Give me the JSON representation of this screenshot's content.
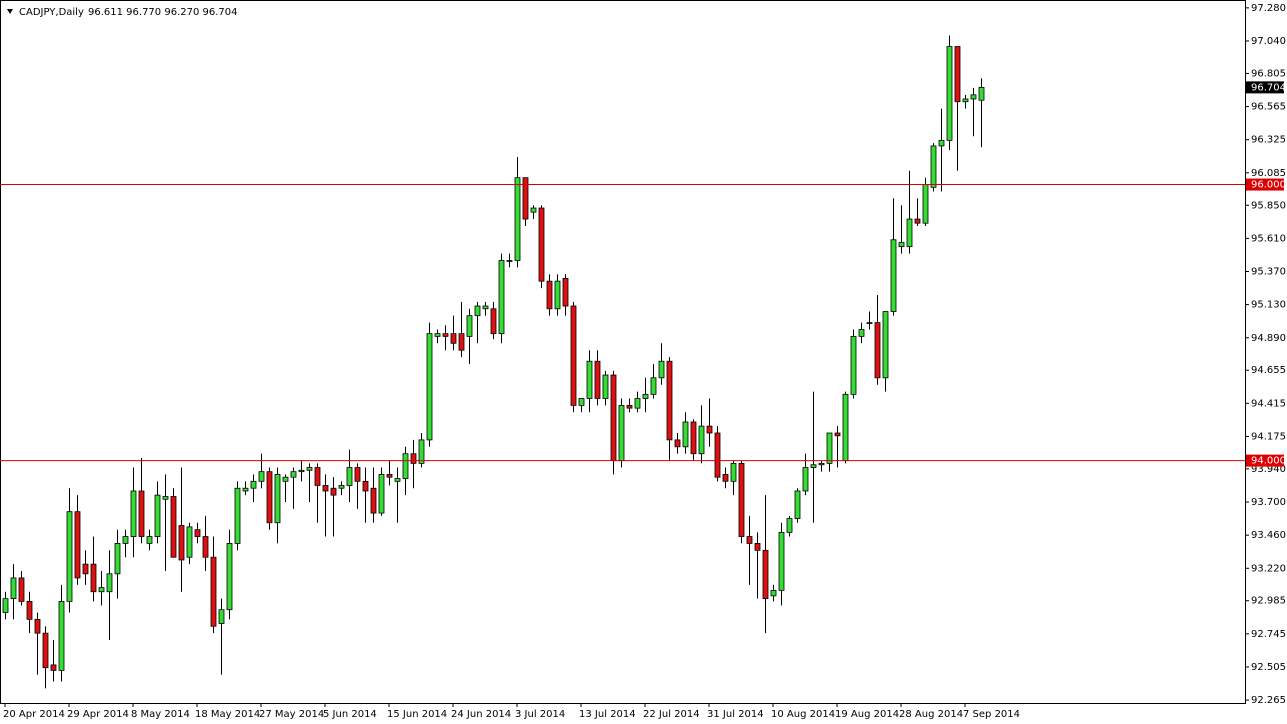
{
  "chart_data": {
    "type": "candlestick",
    "title": "CADJPY,Daily",
    "ohlc_label": "96.611 96.770 96.270 96.704",
    "categories": [
      "20 Apr 2014",
      null,
      null,
      null,
      null,
      null,
      null,
      null,
      "29 Apr 2014",
      null,
      null,
      null,
      null,
      null,
      null,
      null,
      "8 May 2014",
      null,
      null,
      null,
      null,
      null,
      null,
      null,
      "18 May 2014",
      null,
      null,
      null,
      null,
      null,
      null,
      null,
      "27 May 2014",
      null,
      null,
      null,
      null,
      null,
      null,
      null,
      "5 Jun 2014",
      null,
      null,
      null,
      null,
      null,
      null,
      null,
      "15 Jun 2014",
      null,
      null,
      null,
      null,
      null,
      null,
      null,
      "24 Jun 2014",
      null,
      null,
      null,
      null,
      null,
      null,
      null,
      "3 Jul 2014",
      null,
      null,
      null,
      null,
      null,
      null,
      null,
      "13 Jul 2014",
      null,
      null,
      null,
      null,
      null,
      null,
      null,
      "22 Jul 2014",
      null,
      null,
      null,
      null,
      null,
      null,
      null,
      "31 Jul 2014",
      null,
      null,
      null,
      null,
      null,
      null,
      null,
      "10 Aug 2014",
      null,
      null,
      null,
      null,
      null,
      null,
      null,
      "19 Aug 2014",
      null,
      null,
      null,
      null,
      null,
      null,
      null,
      "28 Aug 2014",
      null,
      null,
      null,
      null,
      null,
      null,
      null,
      "7 Sep 2014",
      null,
      null
    ],
    "open": [
      92.9,
      93.0,
      93.15,
      92.98,
      92.85,
      92.75,
      92.52,
      92.48,
      92.98,
      93.63,
      93.25,
      93.25,
      93.05,
      93.05,
      93.18,
      93.4,
      93.45,
      93.78,
      93.4,
      93.45,
      93.72,
      93.74,
      93.53,
      93.3,
      93.5,
      93.45,
      93.3,
      92.82,
      92.92,
      93.4,
      93.78,
      93.8,
      93.85,
      93.92,
      93.55,
      93.85,
      93.88,
      93.92,
      93.93,
      93.95,
      93.82,
      93.8,
      93.8,
      93.82,
      93.95,
      93.85,
      93.8,
      93.62,
      93.9,
      93.85,
      93.87,
      94.05,
      93.98,
      94.15,
      94.9,
      94.92,
      94.92,
      94.92,
      94.9,
      95.05,
      95.1,
      95.1,
      94.92,
      95.45,
      95.45,
      96.05,
      95.8,
      95.83,
      95.3,
      95.1,
      95.32,
      95.12,
      94.4,
      94.45,
      94.72,
      94.45,
      94.62,
      94.0,
      94.4,
      94.38,
      94.45,
      94.48,
      94.6,
      94.72,
      94.15,
      94.1,
      94.28,
      94.05,
      94.25,
      94.2,
      93.9,
      93.85,
      93.98,
      93.45,
      93.4,
      93.35,
      93.02,
      93.06,
      93.48,
      93.58,
      93.78,
      93.95,
      93.97,
      93.98,
      94.2,
      94.0,
      94.48,
      94.9,
      95.0,
      95.0,
      94.6,
      95.08,
      95.55,
      95.55,
      95.75,
      95.72,
      95.98,
      96.28,
      96.32,
      97.0,
      96.6,
      96.62,
      96.611
    ],
    "high": [
      93.05,
      93.25,
      93.2,
      93.05,
      92.9,
      92.8,
      92.7,
      93.1,
      93.8,
      93.75,
      93.35,
      93.45,
      93.2,
      93.35,
      93.5,
      93.5,
      93.95,
      94.02,
      93.5,
      93.85,
      93.9,
      93.8,
      93.95,
      93.55,
      93.55,
      93.6,
      93.45,
      93.0,
      93.5,
      93.85,
      93.85,
      93.9,
      94.05,
      93.95,
      93.95,
      93.9,
      93.95,
      94.0,
      93.98,
      93.98,
      93.9,
      93.88,
      93.85,
      94.08,
      93.98,
      93.95,
      93.95,
      93.95,
      94.0,
      93.95,
      94.1,
      94.15,
      94.2,
      95.0,
      94.95,
      94.98,
      95.05,
      95.15,
      95.1,
      95.15,
      95.15,
      95.15,
      95.5,
      95.5,
      96.2,
      96.05,
      95.85,
      95.85,
      95.35,
      95.35,
      95.35,
      95.15,
      94.45,
      94.8,
      94.8,
      94.65,
      94.65,
      94.45,
      94.45,
      94.5,
      94.6,
      94.7,
      94.85,
      94.75,
      94.2,
      94.35,
      94.3,
      94.4,
      94.45,
      94.25,
      93.95,
      94.0,
      94.0,
      93.6,
      93.48,
      93.75,
      93.1,
      93.55,
      93.6,
      93.8,
      94.05,
      94.5,
      94.0,
      94.2,
      94.25,
      94.5,
      94.95,
      95.0,
      95.08,
      95.2,
      95.08,
      95.9,
      95.85,
      96.1,
      95.9,
      96.05,
      96.3,
      96.55,
      97.08,
      97.0,
      96.65,
      96.7,
      96.77
    ],
    "low": [
      92.85,
      92.85,
      92.95,
      92.75,
      92.45,
      92.35,
      92.4,
      92.4,
      92.9,
      93.1,
      93.1,
      92.98,
      92.95,
      92.7,
      93.0,
      93.3,
      93.3,
      93.4,
      93.35,
      93.4,
      93.2,
      93.3,
      93.05,
      93.25,
      93.4,
      93.2,
      92.75,
      92.45,
      92.85,
      93.35,
      93.75,
      93.7,
      93.8,
      93.5,
      93.4,
      93.7,
      93.65,
      93.85,
      93.7,
      93.55,
      93.45,
      93.45,
      93.75,
      93.7,
      93.65,
      93.55,
      93.55,
      93.6,
      93.82,
      93.55,
      93.75,
      93.8,
      93.95,
      94.1,
      94.85,
      94.8,
      94.8,
      94.75,
      94.7,
      94.85,
      95.05,
      94.88,
      94.85,
      95.4,
      95.4,
      95.7,
      95.75,
      95.25,
      95.05,
      95.05,
      95.05,
      94.35,
      94.35,
      94.35,
      94.4,
      94.4,
      93.9,
      93.95,
      94.35,
      94.35,
      94.35,
      94.45,
      94.55,
      94.0,
      94.05,
      94.05,
      94.0,
      93.98,
      94.1,
      93.85,
      93.8,
      93.75,
      93.4,
      93.1,
      93.0,
      92.75,
      92.98,
      92.95,
      93.45,
      93.55,
      93.75,
      93.55,
      93.92,
      93.92,
      93.95,
      93.98,
      94.45,
      94.85,
      94.95,
      94.55,
      94.5,
      95.05,
      95.5,
      95.5,
      95.7,
      95.7,
      95.95,
      95.95,
      96.25,
      96.1,
      96.55,
      96.35,
      96.27
    ],
    "close": [
      93.0,
      93.15,
      92.98,
      92.85,
      92.75,
      92.5,
      92.48,
      92.98,
      93.63,
      93.15,
      93.18,
      93.05,
      93.08,
      93.18,
      93.4,
      93.45,
      93.78,
      93.45,
      93.45,
      93.75,
      93.74,
      93.3,
      93.28,
      93.52,
      93.45,
      93.3,
      92.8,
      92.92,
      93.4,
      93.8,
      93.8,
      93.85,
      93.92,
      93.55,
      93.9,
      93.88,
      93.92,
      93.93,
      93.95,
      93.82,
      93.78,
      93.75,
      93.82,
      93.95,
      93.85,
      93.78,
      93.62,
      93.9,
      93.88,
      93.87,
      94.05,
      93.98,
      94.15,
      94.92,
      94.92,
      94.9,
      94.85,
      94.8,
      95.05,
      95.12,
      95.12,
      94.92,
      95.45,
      95.45,
      96.05,
      95.75,
      95.83,
      95.3,
      95.1,
      95.3,
      95.12,
      94.4,
      94.45,
      94.72,
      94.45,
      94.62,
      94.0,
      94.4,
      94.38,
      94.45,
      94.48,
      94.6,
      94.72,
      94.15,
      94.1,
      94.28,
      94.05,
      94.25,
      94.2,
      93.88,
      93.85,
      93.98,
      93.45,
      93.4,
      93.35,
      93.0,
      93.06,
      93.48,
      93.58,
      93.78,
      93.95,
      93.97,
      93.98,
      94.2,
      94.18,
      94.48,
      94.9,
      94.95,
      95.0,
      94.6,
      95.08,
      95.6,
      95.58,
      95.75,
      95.72,
      96.0,
      96.28,
      96.32,
      97.0,
      96.6,
      96.62,
      96.65,
      96.704
    ],
    "up_color": "#33dd33",
    "down_color": "#dd1111",
    "ylim": [
      92.244,
      97.337
    ],
    "yticks": [
      {
        "value": 97.28,
        "label": "97.280"
      },
      {
        "value": 97.04,
        "label": "97.040"
      },
      {
        "value": 96.805,
        "label": "96.805"
      },
      {
        "value": 96.565,
        "label": "96.565"
      },
      {
        "value": 96.325,
        "label": "96.325"
      },
      {
        "value": 96.085,
        "label": "96.085"
      },
      {
        "value": 95.85,
        "label": "95.850"
      },
      {
        "value": 95.61,
        "label": "95.610"
      },
      {
        "value": 95.37,
        "label": "95.370"
      },
      {
        "value": 95.13,
        "label": "95.130"
      },
      {
        "value": 94.89,
        "label": "94.890"
      },
      {
        "value": 94.655,
        "label": "94.655"
      },
      {
        "value": 94.415,
        "label": "94.415"
      },
      {
        "value": 94.175,
        "label": "94.175"
      },
      {
        "value": 93.94,
        "label": "93.940"
      },
      {
        "value": 93.7,
        "label": "93.700"
      },
      {
        "value": 93.46,
        "label": "93.460"
      },
      {
        "value": 93.22,
        "label": "93.220"
      },
      {
        "value": 92.985,
        "label": "92.985"
      },
      {
        "value": 92.745,
        "label": "92.745"
      },
      {
        "value": 92.505,
        "label": "92.505"
      },
      {
        "value": 92.265,
        "label": "92.265"
      }
    ],
    "hlines": [
      {
        "value": 96,
        "label": "96.000",
        "color": "#dd0000"
      },
      {
        "value": 94,
        "label": "94.000",
        "color": "#dd0000"
      }
    ],
    "current_price": {
      "value": 96.704,
      "label": "96.704",
      "color": "#000000"
    },
    "grid": false
  }
}
